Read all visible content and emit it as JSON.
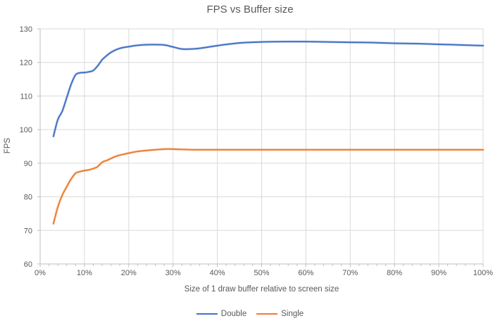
{
  "chart_data": {
    "type": "line",
    "title": "FPS vs Buffer size",
    "xlabel": "Size of 1 draw buffer relative to screen size",
    "ylabel": "FPS",
    "xlim": [
      0,
      100
    ],
    "ylim": [
      60,
      130
    ],
    "y_ticks": [
      60,
      70,
      80,
      90,
      100,
      110,
      120,
      130
    ],
    "x_ticks_major": [
      0,
      10,
      20,
      30,
      40,
      50,
      60,
      70,
      80,
      90,
      100
    ],
    "x_tick_labels": [
      "0%",
      "10%",
      "20%",
      "30%",
      "40%",
      "50%",
      "60%",
      "70%",
      "80%",
      "90%",
      "100%"
    ],
    "x_minor_tick_step": 2,
    "grid": true,
    "legend_position": "bottom",
    "line_smoothing": true,
    "colors": {
      "gridline": "#D9D9D9",
      "axis_line": "#BFBFBF",
      "tick_label": "#595959",
      "title_text": "#595959",
      "background": "#FFFFFF"
    },
    "series": [
      {
        "name": "Double",
        "color": "#4472C4",
        "points": [
          [
            3,
            98
          ],
          [
            4,
            103
          ],
          [
            5,
            105.5
          ],
          [
            6,
            109.5
          ],
          [
            7,
            113.5
          ],
          [
            8,
            116.3
          ],
          [
            9,
            116.9
          ],
          [
            10,
            117
          ],
          [
            11,
            117.2
          ],
          [
            12,
            117.6
          ],
          [
            13,
            119
          ],
          [
            14,
            120.8
          ],
          [
            15,
            122
          ],
          [
            16,
            123
          ],
          [
            17,
            123.7
          ],
          [
            18,
            124.2
          ],
          [
            19,
            124.5
          ],
          [
            20,
            124.7
          ],
          [
            22,
            125.1
          ],
          [
            25,
            125.3
          ],
          [
            28,
            125.2
          ],
          [
            30,
            124.6
          ],
          [
            32,
            124
          ],
          [
            34,
            124
          ],
          [
            36,
            124.2
          ],
          [
            40,
            125
          ],
          [
            45,
            125.8
          ],
          [
            50,
            126.1
          ],
          [
            55,
            126.2
          ],
          [
            60,
            126.2
          ],
          [
            65,
            126.1
          ],
          [
            70,
            126
          ],
          [
            75,
            125.9
          ],
          [
            80,
            125.7
          ],
          [
            85,
            125.6
          ],
          [
            90,
            125.4
          ],
          [
            95,
            125.2
          ],
          [
            100,
            125
          ]
        ]
      },
      {
        "name": "Single",
        "color": "#ED7D31",
        "points": [
          [
            3,
            72
          ],
          [
            4,
            77
          ],
          [
            5,
            80.5
          ],
          [
            6,
            83
          ],
          [
            7,
            85.3
          ],
          [
            8,
            87
          ],
          [
            9,
            87.5
          ],
          [
            10,
            87.8
          ],
          [
            11,
            88
          ],
          [
            12,
            88.4
          ],
          [
            13,
            89
          ],
          [
            14,
            90.3
          ],
          [
            15,
            90.8
          ],
          [
            16,
            91.4
          ],
          [
            17,
            92
          ],
          [
            18,
            92.4
          ],
          [
            19,
            92.7
          ],
          [
            20,
            93
          ],
          [
            22,
            93.5
          ],
          [
            25,
            93.9
          ],
          [
            28,
            94.2
          ],
          [
            30,
            94.2
          ],
          [
            32,
            94.1
          ],
          [
            35,
            94
          ],
          [
            40,
            94
          ],
          [
            45,
            94
          ],
          [
            50,
            94
          ],
          [
            55,
            94
          ],
          [
            60,
            94
          ],
          [
            65,
            94
          ],
          [
            70,
            94
          ],
          [
            75,
            94
          ],
          [
            80,
            94
          ],
          [
            85,
            94
          ],
          [
            90,
            94
          ],
          [
            95,
            94
          ],
          [
            100,
            94
          ]
        ]
      }
    ]
  }
}
